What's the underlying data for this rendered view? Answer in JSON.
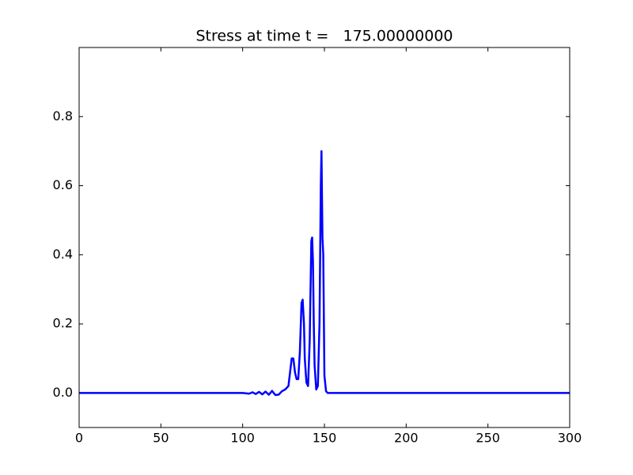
{
  "chart_data": {
    "type": "line",
    "title": "Stress at time t =   175.00000000",
    "x": [
      0,
      100,
      104,
      106,
      108,
      110,
      112,
      114,
      116,
      118,
      120,
      122,
      124,
      126,
      128,
      129,
      130,
      131,
      132,
      133,
      134,
      135,
      136,
      136.7,
      137.5,
      138,
      139,
      140,
      141,
      142,
      142.5,
      143,
      143.5,
      144,
      145,
      146,
      147,
      147.8,
      148.2,
      148.8,
      149.3,
      150,
      151,
      152,
      300
    ],
    "series": [
      {
        "color": "#0000ff",
        "values": [
          0,
          0,
          -0.002,
          0.002,
          -0.003,
          0.003,
          -0.004,
          0.004,
          -0.005,
          0.006,
          -0.006,
          -0.005,
          0.005,
          0.01,
          0.02,
          0.06,
          0.1,
          0.1,
          0.06,
          0.04,
          0.04,
          0.12,
          0.26,
          0.27,
          0.2,
          0.1,
          0.03,
          0.02,
          0.15,
          0.44,
          0.45,
          0.38,
          0.2,
          0.08,
          0.01,
          0.02,
          0.2,
          0.6,
          0.7,
          0.45,
          0.4,
          0.05,
          0.005,
          0,
          0
        ]
      }
    ],
    "xlim": [
      0,
      300
    ],
    "xticks": [
      0,
      50,
      100,
      150,
      200,
      250,
      300
    ],
    "ylim": [
      -0.1,
      1.0
    ],
    "yticks": [
      {
        "value": 0,
        "label": "0.0"
      },
      0.2,
      0.4,
      0.6,
      0.8
    ]
  }
}
